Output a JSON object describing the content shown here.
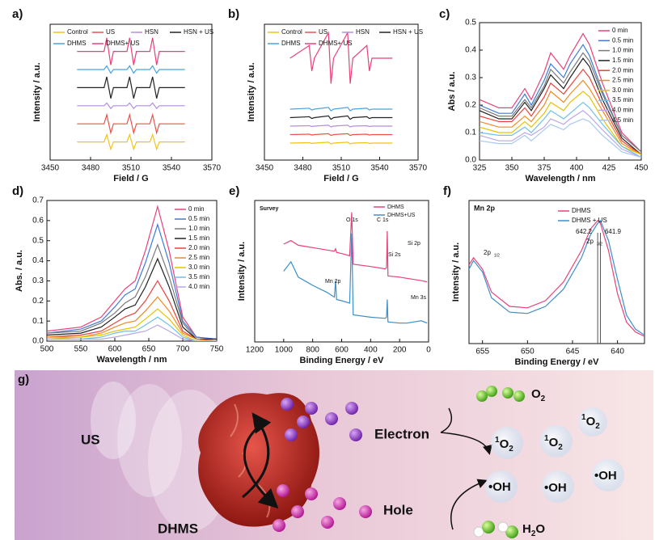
{
  "chart_data": [
    {
      "type": "line",
      "label": "a)",
      "xlabel": "Field / G",
      "ylabel": "Intensity / a.u.",
      "xlim": [
        3450,
        3570
      ],
      "xticks": [
        3450,
        3480,
        3510,
        3540,
        3570
      ],
      "ylim": [
        -2,
        13
      ],
      "legend": "top",
      "x": [
        3470,
        3490,
        3492,
        3495,
        3497,
        3507,
        3509,
        3512,
        3514,
        3524,
        3526,
        3529,
        3531,
        3550
      ],
      "series": [
        {
          "name": "Control",
          "color": "#f0c419",
          "values": [
            0,
            0,
            0.8,
            -0.8,
            0,
            0,
            0.8,
            -0.8,
            0,
            0,
            0.8,
            -0.8,
            0,
            0
          ]
        },
        {
          "name": "US",
          "color": "#e8544a",
          "values": [
            2,
            2,
            3,
            1,
            2,
            2,
            3,
            1,
            2,
            2,
            3,
            1,
            2,
            2
          ]
        },
        {
          "name": "HSN",
          "color": "#b48ee0",
          "values": [
            4,
            4,
            4.3,
            3.7,
            4,
            4,
            4.3,
            3.7,
            4,
            4,
            4.3,
            3.7,
            4,
            4
          ]
        },
        {
          "name": "HSN + US",
          "color": "#222222",
          "values": [
            6,
            6,
            7.2,
            4.8,
            6,
            6,
            7.2,
            4.8,
            6,
            6,
            7.2,
            4.8,
            6,
            6
          ]
        },
        {
          "name": "DHMS",
          "color": "#4aa3df",
          "values": [
            8,
            8,
            8.4,
            7.6,
            8,
            8,
            8.4,
            7.6,
            8,
            8,
            8.4,
            7.6,
            8,
            8
          ]
        },
        {
          "name": "DHMS+ US",
          "color": "#e8407a",
          "values": [
            10,
            10,
            11.5,
            8.5,
            10,
            10,
            11.5,
            8.5,
            10,
            10,
            11.5,
            8.5,
            10,
            10
          ]
        }
      ]
    },
    {
      "type": "line",
      "label": "b)",
      "xlabel": "Field / G",
      "ylabel": "Intensity / a.u.",
      "xlim": [
        3450,
        3570
      ],
      "xticks": [
        3450,
        3480,
        3510,
        3540,
        3570
      ],
      "ylim": [
        -2,
        14
      ],
      "legend": "top",
      "x": [
        3470,
        3485,
        3487,
        3489,
        3500,
        3502,
        3504,
        3515,
        3517,
        3519,
        3530,
        3532,
        3534,
        3550
      ],
      "series": [
        {
          "name": "Control",
          "color": "#f0c419",
          "values": [
            0,
            0.05,
            -0.05,
            0,
            0.1,
            -0.1,
            0,
            0.1,
            -0.1,
            0,
            0.05,
            -0.05,
            0,
            0
          ]
        },
        {
          "name": "US",
          "color": "#e8544a",
          "values": [
            1,
            1.05,
            0.95,
            1,
            1.1,
            0.9,
            1,
            1.1,
            0.9,
            1,
            1.05,
            0.95,
            1,
            1
          ]
        },
        {
          "name": "HSN",
          "color": "#b48ee0",
          "values": [
            2,
            2.05,
            1.95,
            2,
            2.1,
            1.9,
            2,
            2.1,
            1.9,
            2,
            2.05,
            1.95,
            2,
            2
          ]
        },
        {
          "name": "HSN + US",
          "color": "#222222",
          "values": [
            3,
            3.1,
            2.9,
            3,
            3.2,
            2.8,
            3,
            3.2,
            2.8,
            3,
            3.1,
            2.9,
            3,
            3
          ]
        },
        {
          "name": "DHMS",
          "color": "#4aa3df",
          "values": [
            4,
            4.1,
            3.9,
            4,
            4.2,
            3.8,
            4,
            4.2,
            3.8,
            4,
            4.1,
            3.9,
            4,
            4
          ]
        },
        {
          "name": "DHMS+ US",
          "color": "#e8407a",
          "values": [
            10,
            11.5,
            8.5,
            10,
            13,
            7,
            10,
            13,
            7,
            10,
            11.5,
            8.5,
            10,
            10
          ]
        }
      ]
    },
    {
      "type": "line",
      "label": "c)",
      "xlabel": "Wavelength / nm",
      "ylabel": "Abs / a.u.",
      "xlim": [
        325,
        450
      ],
      "xticks": [
        325,
        350,
        375,
        400,
        425,
        450
      ],
      "ylim": [
        0,
        0.5
      ],
      "yticks": [
        {
          "value": 0,
          "label": "0.0"
        },
        0.1,
        0.2,
        0.3,
        0.4,
        0.5
      ],
      "legend": "upper right",
      "x": [
        325,
        340,
        350,
        360,
        365,
        375,
        380,
        390,
        395,
        405,
        410,
        420,
        435,
        450
      ],
      "series": [
        {
          "name": "0 min",
          "color": "#e8407a",
          "values": [
            0.22,
            0.19,
            0.19,
            0.26,
            0.22,
            0.32,
            0.39,
            0.33,
            0.38,
            0.46,
            0.42,
            0.28,
            0.1,
            0.03
          ]
        },
        {
          "name": "0.5 min",
          "color": "#3d7bd6",
          "values": [
            0.2,
            0.17,
            0.17,
            0.24,
            0.2,
            0.29,
            0.35,
            0.3,
            0.35,
            0.42,
            0.38,
            0.25,
            0.09,
            0.03
          ]
        },
        {
          "name": "1.0 min",
          "color": "#7a7a7a",
          "values": [
            0.19,
            0.16,
            0.16,
            0.22,
            0.19,
            0.27,
            0.33,
            0.28,
            0.32,
            0.39,
            0.36,
            0.24,
            0.09,
            0.03
          ]
        },
        {
          "name": "1.5 min",
          "color": "#222222",
          "values": [
            0.18,
            0.15,
            0.15,
            0.21,
            0.18,
            0.26,
            0.31,
            0.26,
            0.3,
            0.37,
            0.34,
            0.22,
            0.08,
            0.02
          ]
        },
        {
          "name": "2.0 min",
          "color": "#e8423c",
          "values": [
            0.16,
            0.14,
            0.14,
            0.19,
            0.16,
            0.23,
            0.28,
            0.24,
            0.27,
            0.33,
            0.3,
            0.2,
            0.07,
            0.02
          ]
        },
        {
          "name": "2.5 min",
          "color": "#f08a24",
          "values": [
            0.14,
            0.12,
            0.12,
            0.16,
            0.14,
            0.2,
            0.25,
            0.21,
            0.24,
            0.29,
            0.26,
            0.18,
            0.06,
            0.02
          ]
        },
        {
          "name": "3.0 min",
          "color": "#e6c300",
          "values": [
            0.12,
            0.1,
            0.1,
            0.14,
            0.12,
            0.17,
            0.21,
            0.18,
            0.21,
            0.25,
            0.23,
            0.15,
            0.05,
            0.02
          ]
        },
        {
          "name": "3.5 min",
          "color": "#6fc0e8",
          "values": [
            0.1,
            0.09,
            0.09,
            0.12,
            0.1,
            0.15,
            0.18,
            0.15,
            0.17,
            0.21,
            0.19,
            0.13,
            0.05,
            0.01
          ]
        },
        {
          "name": "4.0 min",
          "color": "#b9a6e6",
          "values": [
            0.09,
            0.07,
            0.07,
            0.1,
            0.09,
            0.12,
            0.15,
            0.13,
            0.15,
            0.18,
            0.16,
            0.11,
            0.04,
            0.01
          ]
        },
        {
          "name": "4.5 min",
          "color": "#a7c9ef",
          "values": [
            0.07,
            0.06,
            0.06,
            0.09,
            0.07,
            0.11,
            0.13,
            0.11,
            0.13,
            0.15,
            0.14,
            0.09,
            0.03,
            0.01
          ]
        }
      ]
    },
    {
      "type": "line",
      "label": "d)",
      "xlabel": "Wavelength / nm",
      "ylabel": "Abs. / a.u.",
      "xlim": [
        500,
        750
      ],
      "xticks": [
        500,
        550,
        600,
        650,
        700,
        750
      ],
      "ylim": [
        0,
        0.7
      ],
      "yticks": [
        {
          "value": 0,
          "label": "0.0"
        },
        0.1,
        0.2,
        0.3,
        0.4,
        0.5,
        0.6,
        0.7
      ],
      "legend": "upper right",
      "x": [
        500,
        550,
        580,
        600,
        615,
        630,
        645,
        663,
        680,
        700,
        720,
        750
      ],
      "series": [
        {
          "name": "0 min",
          "color": "#e8407a",
          "values": [
            0.05,
            0.07,
            0.12,
            0.2,
            0.26,
            0.3,
            0.45,
            0.67,
            0.45,
            0.12,
            0.02,
            0.01
          ]
        },
        {
          "name": "0.5 min",
          "color": "#3d7bd6",
          "values": [
            0.04,
            0.06,
            0.1,
            0.17,
            0.23,
            0.26,
            0.39,
            0.58,
            0.39,
            0.1,
            0.02,
            0.01
          ]
        },
        {
          "name": "1.0 min",
          "color": "#7a7a7a",
          "values": [
            0.04,
            0.05,
            0.09,
            0.14,
            0.19,
            0.22,
            0.32,
            0.48,
            0.32,
            0.09,
            0.01,
            0.01
          ]
        },
        {
          "name": "1.5 min",
          "color": "#222222",
          "values": [
            0.03,
            0.04,
            0.07,
            0.12,
            0.16,
            0.18,
            0.27,
            0.41,
            0.27,
            0.07,
            0.01,
            0.01
          ]
        },
        {
          "name": "2.0 min",
          "color": "#e8423c",
          "values": [
            0.02,
            0.03,
            0.05,
            0.09,
            0.12,
            0.14,
            0.2,
            0.3,
            0.2,
            0.05,
            0.01,
            0
          ]
        },
        {
          "name": "2.5 min",
          "color": "#f08a24",
          "values": [
            0.02,
            0.02,
            0.04,
            0.07,
            0.09,
            0.1,
            0.15,
            0.22,
            0.15,
            0.04,
            0.01,
            0
          ]
        },
        {
          "name": "3.0 min",
          "color": "#e6c300",
          "values": [
            0.01,
            0.02,
            0.03,
            0.05,
            0.06,
            0.07,
            0.11,
            0.16,
            0.11,
            0.03,
            0,
            0
          ]
        },
        {
          "name": "3.5 min",
          "color": "#6fc0e8",
          "values": [
            0.01,
            0.01,
            0.02,
            0.04,
            0.05,
            0.05,
            0.08,
            0.12,
            0.08,
            0.02,
            0,
            0
          ]
        },
        {
          "name": "4.0 min",
          "color": "#b9a6e6",
          "values": [
            0.01,
            0.01,
            0.01,
            0.02,
            0.03,
            0.04,
            0.05,
            0.08,
            0.05,
            0.01,
            0,
            0
          ]
        }
      ]
    },
    {
      "type": "line",
      "label": "e)",
      "title": "Survey",
      "xlabel": "Binding Energy / eV",
      "ylabel": "Intensity / a.u.",
      "xlim": [
        1200,
        0
      ],
      "xticks": [
        1200,
        1000,
        800,
        600,
        400,
        200,
        0
      ],
      "ylim": [
        0,
        12
      ],
      "legend": "upper right",
      "annotations": [
        "O 1s",
        "C 1s",
        "Si 2p",
        "Si 2s",
        "Mn 2p",
        "Mn 3s"
      ],
      "x": [
        1000,
        950,
        900,
        800,
        700,
        650,
        642,
        635,
        600,
        545,
        531,
        520,
        400,
        300,
        290,
        285,
        280,
        200,
        150,
        100,
        50,
        10
      ],
      "series": [
        {
          "name": "DHMS",
          "color": "#e8407a",
          "values": [
            8.3,
            8.6,
            8.2,
            8.0,
            7.8,
            7.7,
            7.9,
            7.6,
            7.5,
            7.3,
            11.0,
            6.6,
            6.4,
            6.2,
            6.3,
            9.4,
            5.6,
            5.5,
            5.4,
            5.3,
            5.2,
            5.1
          ]
        },
        {
          "name": "DHMS+US",
          "color": "#3d8fc9",
          "values": [
            6.0,
            6.8,
            5.5,
            4.8,
            4.2,
            3.8,
            5.2,
            3.6,
            3.5,
            3.3,
            9.2,
            2.3,
            2.1,
            2.0,
            2.1,
            3.6,
            1.7,
            1.6,
            1.6,
            1.7,
            1.8,
            1.6
          ]
        }
      ]
    },
    {
      "type": "line",
      "label": "f)",
      "title": "Mn 2p",
      "xlabel": "Binding Energy / eV",
      "ylabel": "Intensity / a.u.",
      "xlim": [
        656.5,
        637
      ],
      "xticks": [
        655,
        650,
        645,
        640
      ],
      "ylim": [
        0,
        10
      ],
      "legend": "upper right",
      "annotations": [
        "2p",
        "1/2",
        "2p",
        "3/2"
      ],
      "vlines": [
        642.2,
        641.9
      ],
      "x": [
        658,
        657,
        656,
        655,
        654,
        652,
        650,
        648,
        646,
        644,
        643,
        642.2,
        641.9,
        641,
        640,
        639,
        638,
        637
      ],
      "series": [
        {
          "name": "DHMS",
          "color": "#e8407a",
          "values": [
            4.0,
            5.0,
            6.0,
            5.2,
            3.6,
            2.6,
            2.5,
            3.0,
            4.3,
            6.5,
            8.0,
            8.6,
            8.4,
            6.5,
            3.5,
            1.5,
            0.8,
            0.5
          ]
        },
        {
          "name": "DHMS + US",
          "color": "#3d8fc9",
          "values": [
            3.6,
            4.6,
            5.8,
            5.0,
            3.2,
            2.2,
            2.1,
            2.6,
            3.8,
            6.0,
            7.6,
            8.4,
            8.6,
            7.2,
            4.5,
            2.0,
            1.0,
            0.6
          ]
        }
      ]
    }
  ],
  "diagram": {
    "label": "g)",
    "us": "US",
    "material": "DHMS",
    "electron": "Electron",
    "hole": "Hole",
    "oxygen": {
      "base": "O",
      "sub": "2"
    },
    "singlet_oxygen": [
      {
        "sup": "1",
        "base": "O",
        "sub": "2"
      },
      {
        "sup": "1",
        "base": "O",
        "sub": "2"
      },
      {
        "sup": "1",
        "base": "O",
        "sub": "2"
      }
    ],
    "hydroxyl": [
      "•OH",
      "•OH",
      "•OH"
    ],
    "water": {
      "base": "H",
      "sub": "2",
      "tail": "O"
    }
  }
}
